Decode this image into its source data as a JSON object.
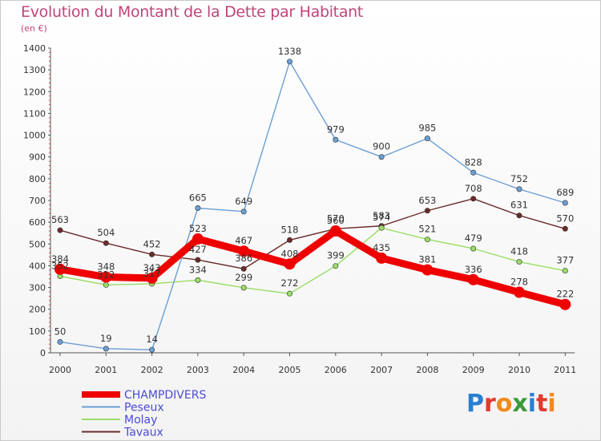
{
  "title": "Evolution du Montant de la Dette par Habitant",
  "subtitle": "(en €)",
  "logo": {
    "letters": [
      "P",
      "r",
      "o",
      "x",
      "i",
      "t",
      "i"
    ],
    "colors": [
      "#2a7fd1",
      "#e23a2e",
      "#f08a1a",
      "#3a9a3a",
      "#2a7fd1",
      "#e23a2e",
      "#f08a1a"
    ]
  },
  "chart_data": {
    "type": "line",
    "categories": [
      "2000",
      "2001",
      "2002",
      "2003",
      "2004",
      "2005",
      "2006",
      "2007",
      "2008",
      "2009",
      "2010",
      "2011"
    ],
    "ylim": [
      0,
      1400
    ],
    "yticks": [
      "0",
      "100",
      "200",
      "300",
      "400",
      "500",
      "600",
      "700",
      "800",
      "900",
      "1000",
      "1100",
      "1200",
      "1300",
      "1400"
    ],
    "grid": false,
    "legend_position": "bottom-left",
    "series": [
      {
        "name": "Tavaux",
        "color": "#6b2b2b",
        "values": [
          563,
          504,
          452,
          427,
          386,
          518,
          570,
          583,
          653,
          708,
          631,
          570
        ],
        "labels": [
          "563",
          "504",
          "452",
          "427",
          "386",
          "518",
          "570",
          "583",
          "653",
          "708",
          "631",
          "570"
        ]
      },
      {
        "name": "Molay",
        "color": "#99dd66",
        "values": [
          352,
          312,
          317,
          334,
          299,
          272,
          399,
          574,
          521,
          479,
          418,
          377
        ],
        "labels": [
          "352",
          "312",
          "317",
          "334",
          "299",
          "272",
          "399",
          "574",
          "521",
          "479",
          "418",
          "377"
        ]
      },
      {
        "name": "Peseux",
        "color": "#6b9fd4",
        "values": [
          50,
          19,
          14,
          665,
          649,
          1338,
          979,
          900,
          985,
          828,
          752,
          689
        ],
        "labels": [
          "50",
          "19",
          "14",
          "665",
          "649",
          "1338",
          "979",
          "900",
          "985",
          "828",
          "752",
          "689"
        ]
      },
      {
        "name": "CHAMPDIVERS",
        "color": "#ee0000",
        "values": [
          384,
          348,
          343,
          523,
          467,
          408,
          560,
          435,
          381,
          336,
          278,
          222
        ],
        "labels": [
          "384",
          "348",
          "343",
          "523",
          "467",
          "408",
          "560",
          "435",
          "381",
          "336",
          "278",
          "222"
        ]
      }
    ],
    "legend": [
      "CHAMPDIVERS",
      "Peseux",
      "Molay",
      "Tavaux"
    ]
  }
}
